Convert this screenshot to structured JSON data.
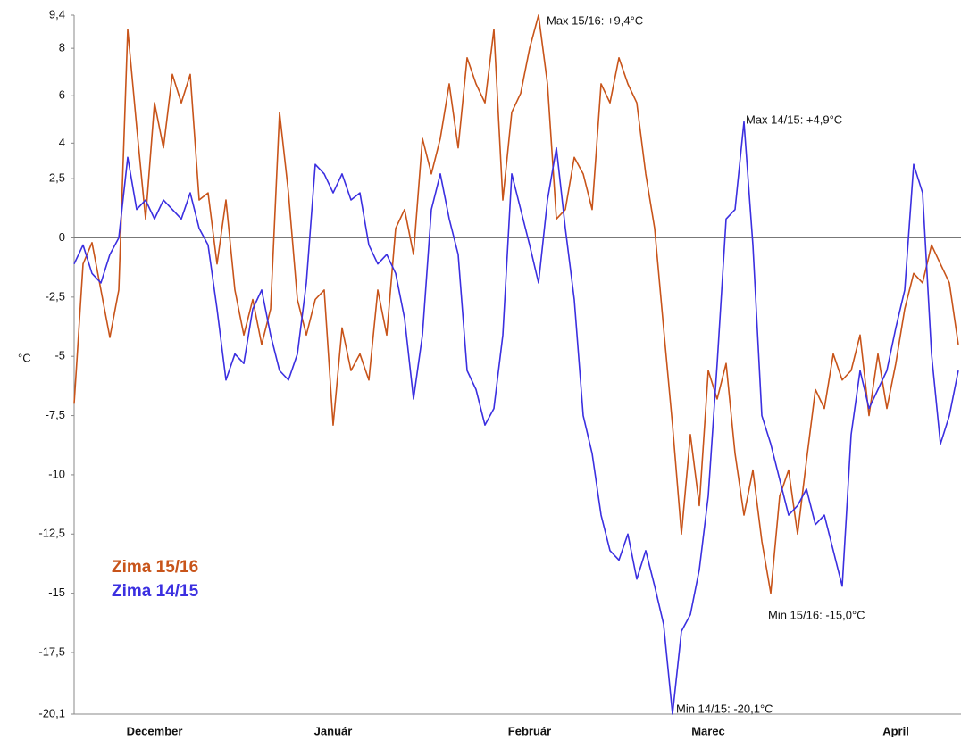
{
  "chart_data": {
    "type": "line",
    "y_label": "°C",
    "categories": [
      null,
      null,
      null,
      null,
      null,
      null,
      null,
      null,
      null,
      "December",
      null,
      null,
      null,
      null,
      null,
      null,
      null,
      null,
      null,
      null,
      null,
      null,
      null,
      null,
      null,
      null,
      null,
      null,
      null,
      "Január",
      null,
      null,
      null,
      null,
      null,
      null,
      null,
      null,
      null,
      null,
      null,
      null,
      null,
      null,
      null,
      null,
      null,
      null,
      null,
      null,
      null,
      "Február",
      null,
      null,
      null,
      null,
      null,
      null,
      null,
      null,
      null,
      null,
      null,
      null,
      null,
      null,
      null,
      null,
      null,
      null,
      null,
      "Marec",
      null,
      null,
      null,
      null,
      null,
      null,
      null,
      null,
      null,
      null,
      null,
      null,
      null,
      null,
      null,
      null,
      null,
      null,
      null,
      null,
      "April",
      null,
      null,
      null,
      null,
      null,
      null,
      null
    ],
    "series": [
      {
        "name": "Zima 15/16",
        "color": "#c8541a",
        "values": [
          -7.0,
          -1.1,
          -0.2,
          -2.2,
          -4.2,
          -2.2,
          8.8,
          4.7,
          0.8,
          5.7,
          3.8,
          6.9,
          5.7,
          6.9,
          1.6,
          1.9,
          -1.1,
          1.6,
          -2.2,
          -4.1,
          -2.6,
          -4.5,
          -3.0,
          5.3,
          1.9,
          -2.6,
          -4.1,
          -2.6,
          -2.2,
          -7.9,
          -3.8,
          -5.6,
          -4.9,
          -6.0,
          -2.2,
          -4.1,
          0.4,
          1.2,
          -0.7,
          4.2,
          2.7,
          4.2,
          6.5,
          3.8,
          7.6,
          6.5,
          5.7,
          8.8,
          1.6,
          5.3,
          6.1,
          8.0,
          9.4,
          6.5,
          0.8,
          1.2,
          3.4,
          2.7,
          1.2,
          6.5,
          5.7,
          7.6,
          6.5,
          5.7,
          2.7,
          0.4,
          -3.8,
          -7.9,
          -12.5,
          -8.3,
          -11.3,
          -5.6,
          -6.8,
          -5.3,
          -9.1,
          -11.7,
          -9.8,
          -12.8,
          -15.0,
          -10.9,
          -9.8,
          -12.5,
          -9.4,
          -6.4,
          -7.2,
          -4.9,
          -6.0,
          -5.6,
          -4.1,
          -7.5,
          -4.9,
          -7.2,
          -5.3,
          -3.0,
          -1.5,
          -1.9,
          -0.3,
          -1.1,
          -1.9,
          -4.5
        ]
      },
      {
        "name": "Zima 14/15",
        "color": "#3b2fe0",
        "values": [
          -1.1,
          -0.3,
          -1.5,
          -1.9,
          -0.7,
          0.0,
          3.4,
          1.2,
          1.6,
          0.8,
          1.6,
          1.2,
          0.8,
          1.9,
          0.4,
          -0.3,
          -3.0,
          -6.0,
          -4.9,
          -5.3,
          -3.0,
          -2.2,
          -4.1,
          -5.6,
          -6.0,
          -4.9,
          -1.9,
          3.1,
          2.7,
          1.9,
          2.7,
          1.6,
          1.9,
          -0.3,
          -1.1,
          -0.7,
          -1.5,
          -3.4,
          -6.8,
          -4.1,
          1.2,
          2.7,
          0.8,
          -0.7,
          -5.6,
          -6.4,
          -7.9,
          -7.2,
          -4.1,
          2.7,
          1.2,
          -0.3,
          -1.9,
          1.6,
          3.8,
          0.4,
          -2.6,
          -7.5,
          -9.1,
          -11.7,
          -13.2,
          -13.6,
          -12.5,
          -14.4,
          -13.2,
          -14.7,
          -16.3,
          -20.1,
          -16.6,
          -15.9,
          -14.0,
          -10.9,
          -5.3,
          0.8,
          1.2,
          4.9,
          -0.3,
          -7.5,
          -8.7,
          -10.2,
          -11.7,
          -11.3,
          -10.6,
          -12.1,
          -11.7,
          -13.2,
          -14.7,
          -8.3,
          -5.6,
          -7.2,
          -6.4,
          -5.6,
          -3.8,
          -2.2,
          3.1,
          1.9,
          -4.9,
          -8.7,
          -7.5,
          -5.6
        ]
      }
    ],
    "annotations": [
      "Max 15/16: +9,4°C",
      "Max 14/15: +4,9°C",
      "Min 15/16: -15,0°C",
      "Min 14/15: -20,1°C"
    ],
    "ylim": [
      -20.1,
      9.4
    ],
    "yticks": [
      {
        "value": 9.4,
        "label": "9,4"
      },
      8,
      6,
      4,
      {
        "value": 2.5,
        "label": "2,5"
      },
      0,
      {
        "value": -2.5,
        "label": "-2,5"
      },
      -5,
      {
        "value": -7.5,
        "label": "-7,5"
      },
      -10,
      {
        "value": -12.5,
        "label": "-12,5"
      },
      -15,
      {
        "value": -17.5,
        "label": "-17,5"
      },
      {
        "value": -20.1,
        "label": "-20,1"
      }
    ],
    "zero_line": true,
    "grid": false
  }
}
